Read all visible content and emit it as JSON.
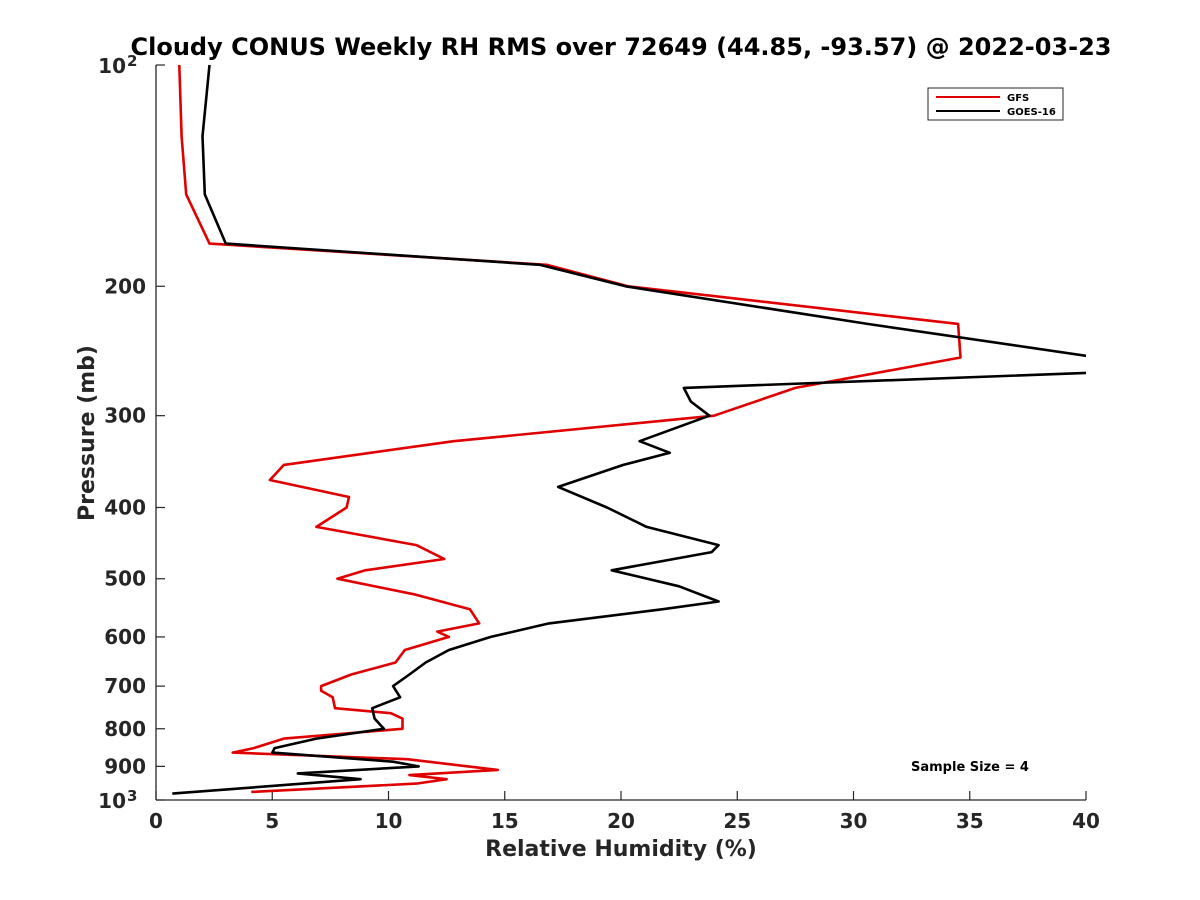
{
  "chart_data": {
    "type": "line",
    "title": "Cloudy CONUS Weekly RH RMS over 72649 (44.85, -93.57) @ 2022-03-23",
    "xlabel": "Relative Humidity (%)",
    "ylabel": "Pressure (mb)",
    "xlim": [
      0,
      40
    ],
    "ylim": [
      100,
      1000
    ],
    "y_scale": "log",
    "y_reversed": true,
    "grid": false,
    "legend_position": "top-right",
    "x_ticks": [
      "0",
      "5",
      "10",
      "15",
      "20",
      "25",
      "30",
      "35",
      "40"
    ],
    "y_ticks": [
      {
        "value": 100,
        "base": "10",
        "exp": "2"
      },
      {
        "value": 200,
        "label": "200"
      },
      {
        "value": 300,
        "label": "300"
      },
      {
        "value": 400,
        "label": "400"
      },
      {
        "value": 500,
        "label": "500"
      },
      {
        "value": 600,
        "label": "600"
      },
      {
        "value": 700,
        "label": "700"
      },
      {
        "value": 800,
        "label": "800"
      },
      {
        "value": 900,
        "label": "900"
      },
      {
        "value": 1000,
        "base": "10",
        "exp": "3"
      }
    ],
    "series": [
      {
        "name": "GFS",
        "color": "#e00000",
        "points": [
          [
            1.0,
            100
          ],
          [
            1.1,
            125
          ],
          [
            1.3,
            150
          ],
          [
            2.3,
            175
          ],
          [
            16.8,
            187
          ],
          [
            20.3,
            200
          ],
          [
            34.5,
            225
          ],
          [
            34.6,
            250
          ],
          [
            27.5,
            275
          ],
          [
            24.0,
            300
          ],
          [
            12.8,
            325
          ],
          [
            5.5,
            350
          ],
          [
            4.9,
            367
          ],
          [
            8.3,
            387
          ],
          [
            8.2,
            400
          ],
          [
            6.9,
            425
          ],
          [
            11.2,
            450
          ],
          [
            12.4,
            470
          ],
          [
            9.0,
            487
          ],
          [
            7.8,
            500
          ],
          [
            11.1,
            525
          ],
          [
            13.5,
            550
          ],
          [
            13.9,
            575
          ],
          [
            12.1,
            590
          ],
          [
            12.6,
            600
          ],
          [
            10.7,
            625
          ],
          [
            10.3,
            650
          ],
          [
            8.4,
            675
          ],
          [
            7.1,
            700
          ],
          [
            7.1,
            710
          ],
          [
            7.6,
            725
          ],
          [
            7.7,
            750
          ],
          [
            10.1,
            762
          ],
          [
            10.6,
            775
          ],
          [
            10.6,
            800
          ],
          [
            5.5,
            825
          ],
          [
            4.2,
            850
          ],
          [
            3.3,
            862
          ],
          [
            10.8,
            880
          ],
          [
            14.7,
            910
          ],
          [
            10.9,
            925
          ],
          [
            12.5,
            937
          ],
          [
            11.2,
            950
          ],
          [
            4.1,
            975
          ]
        ]
      },
      {
        "name": "GOES-16",
        "color": "#000000",
        "points": [
          [
            2.3,
            100
          ],
          [
            2.0,
            125
          ],
          [
            2.1,
            150
          ],
          [
            3.0,
            175
          ],
          [
            16.5,
            187
          ],
          [
            20.2,
            200
          ],
          [
            30.6,
            225
          ],
          [
            40.5,
            250
          ],
          [
            40.5,
            262
          ],
          [
            22.7,
            275
          ],
          [
            23.0,
            287
          ],
          [
            23.8,
            300
          ],
          [
            20.8,
            325
          ],
          [
            22.1,
            337
          ],
          [
            20.1,
            350
          ],
          [
            17.3,
            375
          ],
          [
            19.4,
            400
          ],
          [
            21.1,
            425
          ],
          [
            24.2,
            450
          ],
          [
            23.9,
            460
          ],
          [
            19.6,
            487
          ],
          [
            22.5,
            512
          ],
          [
            24.2,
            537
          ],
          [
            21.8,
            550
          ],
          [
            16.9,
            575
          ],
          [
            14.4,
            600
          ],
          [
            12.6,
            625
          ],
          [
            11.6,
            650
          ],
          [
            10.9,
            675
          ],
          [
            10.2,
            700
          ],
          [
            10.5,
            725
          ],
          [
            9.3,
            750
          ],
          [
            9.4,
            775
          ],
          [
            9.8,
            800
          ],
          [
            6.9,
            825
          ],
          [
            5.1,
            850
          ],
          [
            5.0,
            862
          ],
          [
            10.2,
            887
          ],
          [
            11.3,
            900
          ],
          [
            6.1,
            920
          ],
          [
            8.8,
            937
          ],
          [
            0.7,
            980
          ]
        ]
      }
    ],
    "annotation": "Sample Size = 4"
  }
}
